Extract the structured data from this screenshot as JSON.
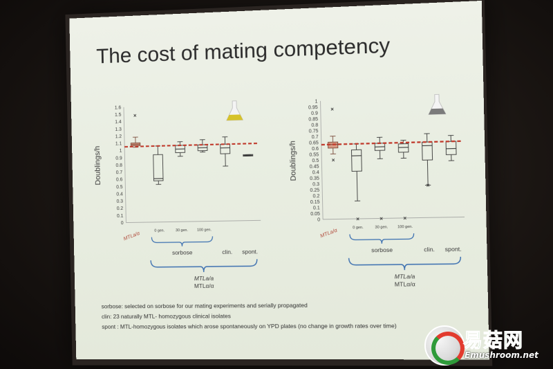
{
  "slide": {
    "title": "The cost of mating competency"
  },
  "charts": [
    {
      "ylabel": "Doublings/h",
      "yticks": [
        "1.6",
        "1.5",
        "1.4",
        "1.3",
        "1.2",
        "1.1",
        "1",
        "0.9",
        "0.8",
        "0.7",
        "0.6",
        "0.5",
        "0.4",
        "0.3",
        "0.2",
        "0.1",
        "0"
      ],
      "ref_label": "MTLa/α",
      "gen_labels": [
        "0 gen.",
        "30 gen.",
        "100 gen."
      ],
      "group_sorbose": "sorbose",
      "group_clin": "clin.",
      "group_spont": "spont.",
      "group_bottom_1": "MTLa/a",
      "group_bottom_2": "MTLα/α",
      "reference_color": "#c0392b",
      "icon": "flask-yellow-icon"
    },
    {
      "ylabel": "Doublings/h",
      "yticks": [
        "1",
        "0.95",
        "0.9",
        "0.85",
        "0.8",
        "0.75",
        "0.7",
        "0.65",
        "0.6",
        "0.55",
        "0.5",
        "0.45",
        "0.4",
        "0.35",
        "0.3",
        "0.25",
        "0.2",
        "0.15",
        "0.1",
        "0.05",
        "0"
      ],
      "ref_label": "MTLa/α",
      "gen_labels": [
        "0 gen.",
        "30 gen.",
        "100 gen."
      ],
      "group_sorbose": "sorbose",
      "group_clin": "clin.",
      "group_spont": "spont.",
      "group_bottom_1": "MTLa/a",
      "group_bottom_2": "MTLα/α",
      "reference_color": "#c0392b",
      "icon": "flask-grey-icon"
    }
  ],
  "chart_data": [
    {
      "type": "box",
      "ylim": [
        0,
        1.6
      ],
      "reference_line": 1.05,
      "boxes": [
        {
          "label": "MTLa/α",
          "q1": 1.06,
          "median": 1.08,
          "q3": 1.1,
          "min": 1.04,
          "max": 1.18,
          "outliers": [
            1.48
          ]
        },
        {
          "label": "0 gen.",
          "q1": 0.57,
          "median": 0.6,
          "q3": 0.93,
          "min": 0.52,
          "max": 1.05,
          "outliers": []
        },
        {
          "label": "30 gen.",
          "q1": 0.95,
          "median": 1.0,
          "q3": 1.05,
          "min": 0.9,
          "max": 1.1,
          "outliers": []
        },
        {
          "label": "100 gen.",
          "q1": 0.97,
          "median": 1.01,
          "q3": 1.05,
          "min": 0.95,
          "max": 1.12,
          "outliers": []
        },
        {
          "label": "clin.",
          "q1": 0.92,
          "median": 1.0,
          "q3": 1.05,
          "min": 0.75,
          "max": 1.15,
          "outliers": []
        },
        {
          "label": "spont.",
          "q1": 0.88,
          "median": 0.89,
          "q3": 0.9,
          "min": 0.88,
          "max": 0.9,
          "outliers": []
        }
      ]
    },
    {
      "type": "box",
      "ylim": [
        0,
        1
      ],
      "reference_line": 0.63,
      "boxes": [
        {
          "label": "MTLa/α",
          "q1": 0.6,
          "median": 0.63,
          "q3": 0.65,
          "min": 0.55,
          "max": 0.7,
          "outliers": [
            0.93,
            0.5
          ]
        },
        {
          "label": "0 gen.",
          "q1": 0.4,
          "median": 0.53,
          "q3": 0.58,
          "min": 0.15,
          "max": 0.63,
          "outliers": [
            0
          ]
        },
        {
          "label": "30 gen.",
          "q1": 0.57,
          "median": 0.6,
          "q3": 0.63,
          "min": 0.5,
          "max": 0.68,
          "outliers": [
            0
          ]
        },
        {
          "label": "100 gen.",
          "q1": 0.55,
          "median": 0.59,
          "q3": 0.62,
          "min": 0.5,
          "max": 0.65,
          "outliers": [
            0
          ]
        },
        {
          "label": "clin.",
          "q1": 0.48,
          "median": 0.6,
          "q3": 0.63,
          "min": 0.27,
          "max": 0.7,
          "outliers": [
            0.27
          ]
        },
        {
          "label": "spont.",
          "q1": 0.52,
          "median": 0.57,
          "q3": 0.63,
          "min": 0.47,
          "max": 0.68,
          "outliers": []
        }
      ]
    }
  ],
  "footnotes": {
    "line1": "sorbose: selected on sorbose for our mating experiments and serially propagated",
    "line2": "clin: 23 naturally MTL- homozygous clinical isolates",
    "line3": "spont : MTL-homozygous isolates which arose spontaneously on YPD plates (no change in growth rates over time)"
  },
  "watermark": {
    "brand": "易菇网",
    "url": "Emushroom.net"
  }
}
